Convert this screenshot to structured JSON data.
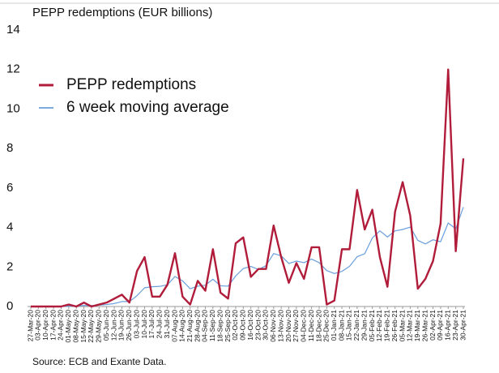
{
  "chart_data": {
    "type": "line",
    "title": "PEPP redemptions (EUR billions)",
    "source": "Source: ECB and Exante Data.",
    "categories": [
      "27-Mar-20",
      "03-Apr-20",
      "10-Apr-20",
      "17-Apr-20",
      "24-Apr-20",
      "01-May-20",
      "08-May-20",
      "15-May-20",
      "22-May-20",
      "29-May-20",
      "05-Jun-20",
      "12-Jun-20",
      "19-Jun-20",
      "26-Jun-20",
      "03-Jul-20",
      "10-Jul-20",
      "17-Jul-20",
      "24-Jul-20",
      "31-Jul-20",
      "07-Aug-20",
      "14-Aug-20",
      "21-Aug-20",
      "28-Aug-20",
      "04-Sep-20",
      "11-Sep-20",
      "18-Sep-20",
      "25-Sep-20",
      "02-Oct-20",
      "09-Oct-20",
      "16-Oct-20",
      "23-Oct-20",
      "30-Oct-20",
      "06-Nov-20",
      "13-Nov-20",
      "20-Nov-20",
      "27-Nov-20",
      "04-Dec-20",
      "11-Dec-20",
      "18-Dec-20",
      "25-Dec-20",
      "01-Jan-21",
      "08-Jan-21",
      "15-Jan-21",
      "22-Jan-21",
      "29-Jan-21",
      "05-Feb-21",
      "12-Feb-21",
      "19-Feb-21",
      "26-Feb-21",
      "05-Mar-21",
      "12-Mar-21",
      "19-Mar-21",
      "26-Mar-21",
      "02-Apr-21",
      "09-Apr-21",
      "16-Apr-21",
      "23-Apr-21",
      "30-Apr-21"
    ],
    "series": [
      {
        "name": "PEPP redemptions",
        "color": "#b01c3a",
        "width": 2.4,
        "values": [
          0,
          0,
          0,
          0,
          0,
          0.1,
          0,
          0.2,
          0,
          0.1,
          0.2,
          0.4,
          0.6,
          0.2,
          1.8,
          2.5,
          0.5,
          0.5,
          1.1,
          2.7,
          0.5,
          0.1,
          1.3,
          0.8,
          2.9,
          0.7,
          0.4,
          3.2,
          3.5,
          1.5,
          1.9,
          1.9,
          4.1,
          2.5,
          1.2,
          2.2,
          1.4,
          3.0,
          3.0,
          0.1,
          0.3,
          2.9,
          2.9,
          5.9,
          3.9,
          4.9,
          2.5,
          1.0,
          4.8,
          6.3,
          4.6,
          0.9,
          1.4,
          2.3,
          4.2,
          12.0,
          2.8,
          7.5
        ]
      },
      {
        "name": "6 week moving average",
        "color": "#6a9fdc",
        "width": 1.2,
        "values": [
          0,
          0,
          0,
          0,
          0,
          0.02,
          0.02,
          0.05,
          0.05,
          0.07,
          0.1,
          0.15,
          0.25,
          0.25,
          0.55,
          0.95,
          1.0,
          1.02,
          1.1,
          1.52,
          1.3,
          0.9,
          1.03,
          1.08,
          1.38,
          1.05,
          1.03,
          1.55,
          1.92,
          2.03,
          1.87,
          2.07,
          2.68,
          2.57,
          2.18,
          2.3,
          2.22,
          2.4,
          2.22,
          1.82,
          1.67,
          1.78,
          2.03,
          2.52,
          2.67,
          3.47,
          3.83,
          3.52,
          3.83,
          3.9,
          4.02,
          3.35,
          3.17,
          3.38,
          3.28,
          4.23,
          3.93,
          5.03
        ]
      }
    ],
    "ylim": [
      0,
      14
    ],
    "yticks": [
      0,
      2,
      4,
      6,
      8,
      10,
      12,
      14
    ],
    "grid": false,
    "legend": "upper left"
  }
}
